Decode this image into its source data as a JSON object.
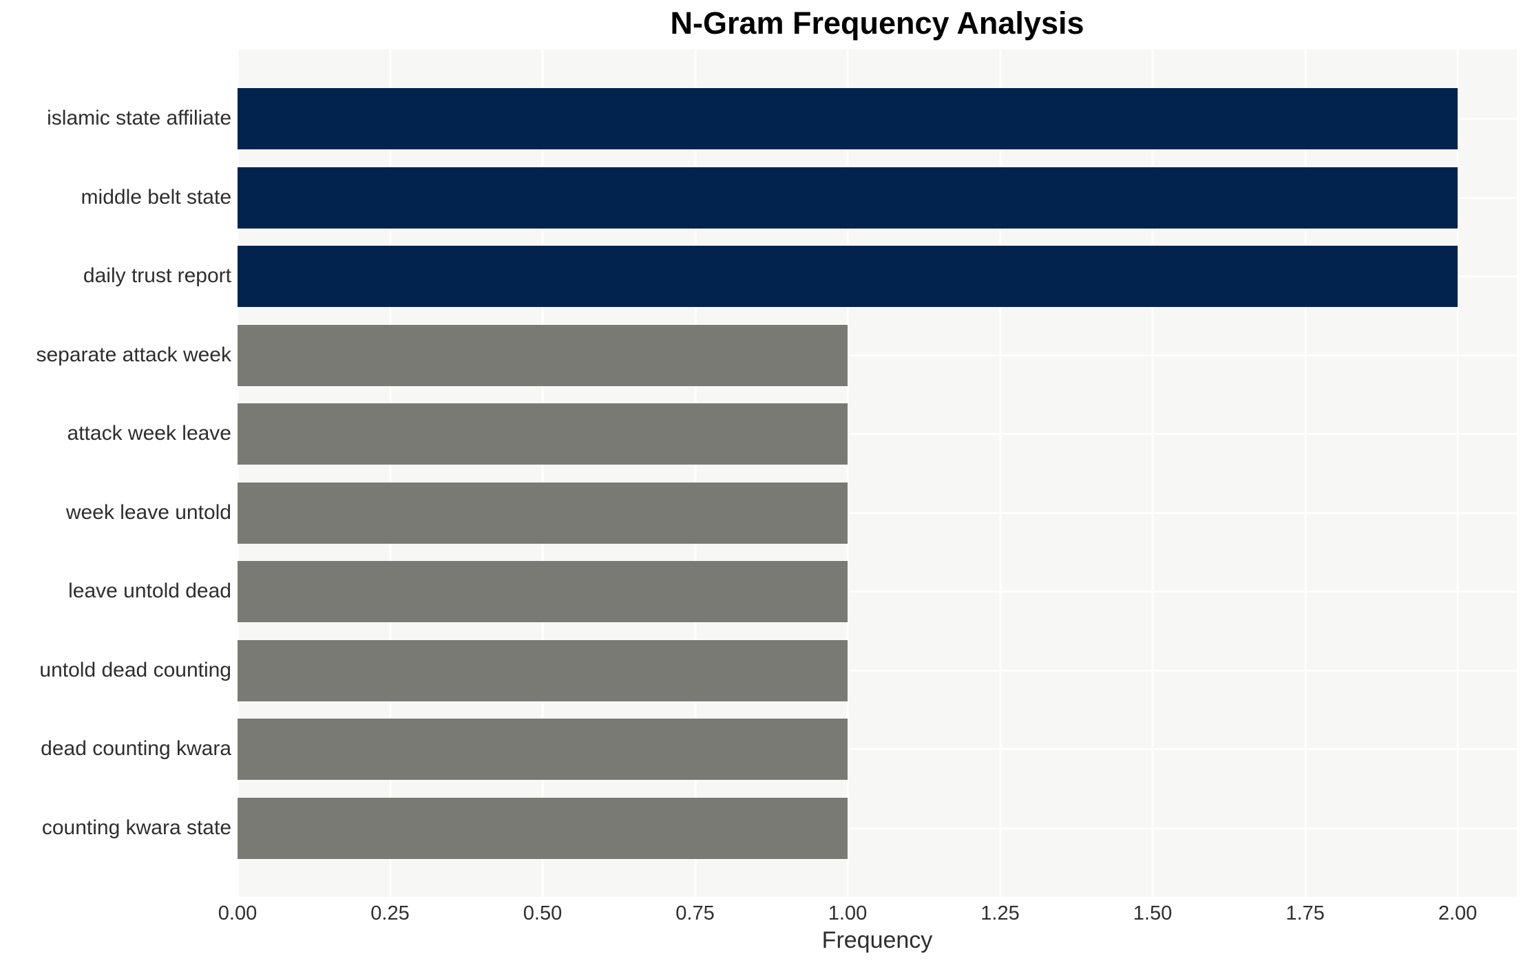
{
  "chart_data": {
    "type": "bar",
    "orientation": "horizontal",
    "title": "N-Gram Frequency Analysis",
    "xlabel": "Frequency",
    "ylabel": "",
    "categories": [
      "islamic state affiliate",
      "middle belt state",
      "daily trust report",
      "separate attack week",
      "attack week leave",
      "week leave untold",
      "leave untold dead",
      "untold dead counting",
      "dead counting kwara",
      "counting kwara state"
    ],
    "values": [
      2,
      2,
      2,
      1,
      1,
      1,
      1,
      1,
      1,
      1
    ],
    "bar_colors": [
      "#01234e",
      "#01234e",
      "#01234e",
      "#7a7a75",
      "#7a7a75",
      "#7a7a75",
      "#7a7a75",
      "#7a7a75",
      "#7a7a75",
      "#7a7a75"
    ],
    "xlim": [
      0,
      2.097
    ],
    "xticks": [
      0,
      0.25,
      0.5,
      0.75,
      1.0,
      1.25,
      1.5,
      1.75,
      2.0
    ],
    "xtick_labels": [
      "0.00",
      "0.25",
      "0.50",
      "0.75",
      "1.00",
      "1.25",
      "1.50",
      "1.75",
      "2.00"
    ],
    "grid": true,
    "legend": false,
    "colors": {
      "figure_background": "#ffffff",
      "plot_background": "#f7f7f6",
      "gridline": "#ffffff",
      "text": "#2e2e2e",
      "title_text": "#000000",
      "bar_high": "#01234e",
      "bar_low": "#7a7a75"
    }
  }
}
